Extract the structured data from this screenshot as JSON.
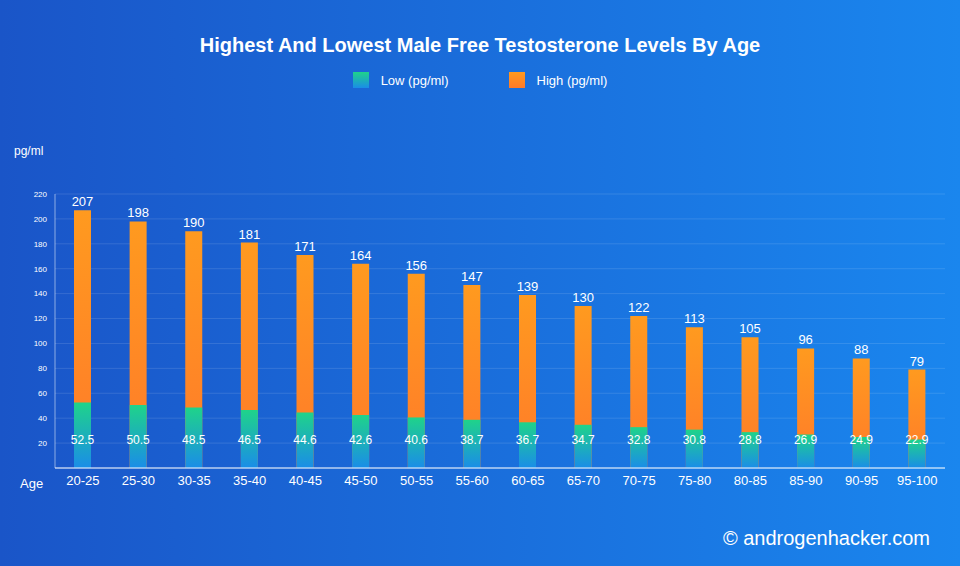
{
  "chart_data": {
    "type": "bar",
    "title": "Highest And Lowest Male Free Testosterone Levels By Age",
    "x_label": "Age",
    "y_label": "pg/ml",
    "annotations": [
      "© androgenhacker.com"
    ],
    "categories": [
      "20-25",
      "25-30",
      "30-35",
      "35-40",
      "40-45",
      "45-50",
      "50-55",
      "55-60",
      "60-65",
      "65-70",
      "70-75",
      "75-80",
      "80-85",
      "85-90",
      "90-95",
      "95-100"
    ],
    "series": [
      {
        "name": "Low (pg/ml)",
        "color": "#1fd38a",
        "values": [
          52.5,
          50.5,
          48.5,
          46.5,
          44.6,
          42.6,
          40.6,
          38.7,
          36.7,
          34.7,
          32.8,
          30.8,
          28.8,
          26.9,
          24.9,
          22.9
        ]
      },
      {
        "name": "High (pg/ml)",
        "color": "#ff9a1f",
        "values": [
          207,
          198,
          190,
          181,
          171,
          164,
          156,
          147,
          139,
          130,
          122,
          113,
          105,
          96,
          88,
          79
        ]
      }
    ],
    "ylim": [
      0,
      220
    ],
    "yticks": [
      20,
      40,
      60,
      80,
      100,
      120,
      140,
      160,
      180,
      200,
      220
    ],
    "grid": true,
    "legend": "top",
    "data_labels": true,
    "stacked": false
  }
}
